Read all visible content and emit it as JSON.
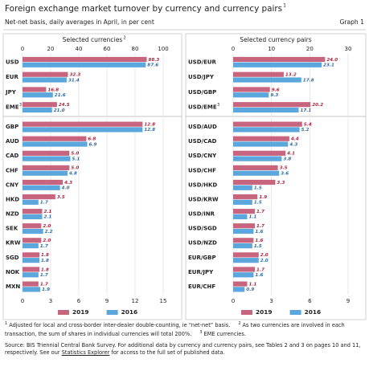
{
  "header": {
    "title": "Foreign exchange market turnover by currency and currency pairs",
    "title_note": "1",
    "subtitle": "Net-net basis, daily averages in April, in per cent",
    "graph_label": "Graph 1"
  },
  "chart_data": [
    {
      "type": "bar",
      "orientation": "horizontal",
      "title": "Selected currencies",
      "title_note": "2",
      "categories": [
        "USD",
        "EUR",
        "JPY",
        "EME"
      ],
      "category_notes": [
        null,
        null,
        null,
        "3"
      ],
      "series": [
        {
          "color": "#c8657e",
          "label_color": "#b0203a",
          "values": [
            88.3,
            32.3,
            16.8,
            24.5
          ],
          "value_labels": [
            "88.3",
            "32.3",
            "16.8",
            "24.5"
          ]
        },
        {
          "color": "#5ba6dc",
          "label_color": "#2a6aa3",
          "values": [
            87.6,
            31.4,
            21.6,
            21.0
          ],
          "value_labels": [
            "87.6",
            "31.4",
            "21.6",
            "21.0"
          ]
        }
      ],
      "xlim": [
        0,
        100
      ],
      "xticks": [
        0,
        20,
        40,
        60,
        80,
        100
      ],
      "axis_position": "top",
      "grid": true
    },
    {
      "type": "bar",
      "orientation": "horizontal",
      "categories": [
        "GBP",
        "AUD",
        "CAD",
        "CHF",
        "CNY",
        "HKD",
        "NZD",
        "SEK",
        "KRW",
        "SGD",
        "NOK",
        "MXN"
      ],
      "series": [
        {
          "name": "2019",
          "color": "#c8657e",
          "label_color": "#b0203a",
          "values": [
            12.8,
            6.8,
            5.0,
            5.0,
            4.3,
            3.5,
            2.1,
            2.0,
            2.0,
            1.8,
            1.8,
            1.7
          ],
          "value_labels": [
            "12.8",
            "6.8",
            "5.0",
            "5.0",
            "4.3",
            "3.5",
            "2.1",
            "2.0",
            "2.0",
            "1.8",
            "1.8",
            "1.7"
          ]
        },
        {
          "name": "2016",
          "color": "#5ba6dc",
          "label_color": "#2a6aa3",
          "values": [
            12.8,
            6.9,
            5.1,
            4.8,
            4.0,
            1.7,
            2.1,
            2.2,
            1.7,
            1.8,
            1.7,
            1.9
          ],
          "value_labels": [
            "12.8",
            "6.9",
            "5.1",
            "4.8",
            "4.0",
            "1.7",
            "2.1",
            "2.2",
            "1.7",
            "1.8",
            "1.7",
            "1.9"
          ]
        }
      ],
      "xlim": [
        0,
        15
      ],
      "xticks": [
        0,
        3,
        6,
        9,
        12,
        15
      ],
      "axis_position": "bottom",
      "grid": true,
      "legend": "bottom"
    },
    {
      "type": "bar",
      "orientation": "horizontal",
      "title": "Selected currency pairs",
      "categories": [
        "USD/EUR",
        "USD/JPY",
        "USD/GBP",
        "USD/EME"
      ],
      "category_notes": [
        null,
        null,
        null,
        "3"
      ],
      "series": [
        {
          "color": "#c8657e",
          "label_color": "#b0203a",
          "values": [
            24.0,
            13.2,
            9.6,
            20.2
          ],
          "value_labels": [
            "24.0",
            "13.2",
            "9.6",
            "20.2"
          ]
        },
        {
          "color": "#5ba6dc",
          "label_color": "#2a6aa3",
          "values": [
            23.1,
            17.8,
            9.3,
            17.1
          ],
          "value_labels": [
            "23.1",
            "17.8",
            "9.3",
            "17.1"
          ]
        }
      ],
      "xlim": [
        0,
        30
      ],
      "xticks": [
        0,
        10,
        20,
        30
      ],
      "axis_position": "top",
      "grid": true
    },
    {
      "type": "bar",
      "orientation": "horizontal",
      "categories": [
        "USD/AUD",
        "USD/CAD",
        "USD/CNY",
        "USD/CHF",
        "USD/HKD",
        "USD/KRW",
        "USD/INR",
        "USD/SGD",
        "USD/NZD",
        "EUR/GBP",
        "EUR/JPY",
        "EUR/CHF"
      ],
      "series": [
        {
          "name": "2019",
          "color": "#c8657e",
          "label_color": "#b0203a",
          "values": [
            5.4,
            4.4,
            4.1,
            3.5,
            3.3,
            1.9,
            1.7,
            1.7,
            1.6,
            2.0,
            1.7,
            1.1
          ],
          "value_labels": [
            "5.4",
            "4.4",
            "4.1",
            "3.5",
            "3.3",
            "1.9",
            "1.7",
            "1.7",
            "1.6",
            "2.0",
            "1.7",
            "1.1"
          ]
        },
        {
          "name": "2016",
          "color": "#5ba6dc",
          "label_color": "#2a6aa3",
          "values": [
            5.2,
            4.3,
            3.8,
            3.6,
            1.5,
            1.5,
            1.1,
            1.6,
            1.5,
            2.0,
            1.6,
            0.9
          ],
          "value_labels": [
            "5.2",
            "4.3",
            "3.8",
            "3.6",
            "1.5",
            "1.5",
            "1.1",
            "1.6",
            "1.5",
            "2.0",
            "1.6",
            "0.9"
          ]
        }
      ],
      "xlim": [
        0,
        9
      ],
      "xticks": [
        0,
        3,
        6,
        9
      ],
      "axis_position": "bottom",
      "grid": true,
      "legend": "bottom"
    }
  ],
  "footnotes": [
    {
      "mark": "1",
      "text": "Adjusted for local and cross-border inter-dealer double-counting, ie “net-net” basis."
    },
    {
      "mark": "2",
      "text": "As two currencies are involved in each transaction, the sum of shares in individual currencies will total 200%."
    },
    {
      "mark": "3",
      "text": "EME currencies."
    }
  ],
  "source": {
    "before": "Source: BIS Triennial Central Bank Survey. For additional data by currency and currency pairs, see Tables 2 and 3 on pages 10 and 11, respectively. See our ",
    "link": "Statistics Explorer",
    "after": " for access to the full set of published data."
  }
}
